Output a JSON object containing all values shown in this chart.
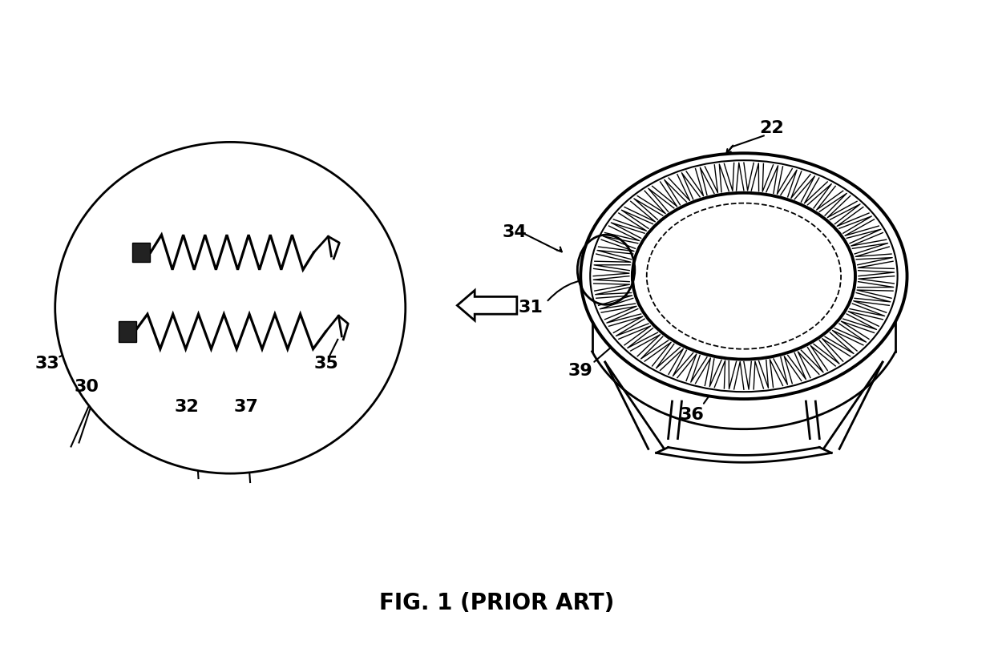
{
  "bg_color": "#ffffff",
  "line_color": "#000000",
  "title": "FIG. 1 (PRIOR ART)",
  "title_fontsize": 20,
  "title_fontweight": "bold"
}
